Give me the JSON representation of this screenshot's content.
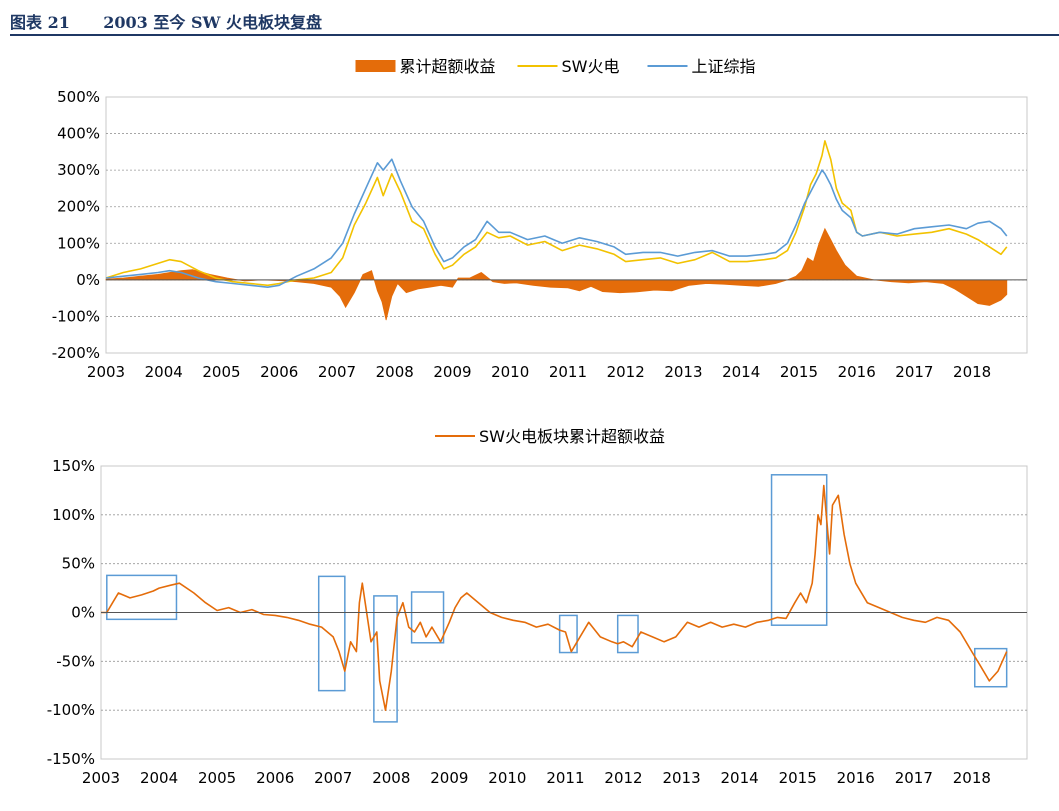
{
  "header": {
    "figure_label": "图表 21",
    "figure_title": "2003 至今 SW 火电板块复盘"
  },
  "colors": {
    "excess": "#e46c0a",
    "sw_power": "#f2c200",
    "shanghai": "#5b9bd5",
    "box": "#5b9bd5",
    "title_bar": "#1f3864"
  },
  "chart_data": [
    {
      "type": "line",
      "title": "",
      "legend_position": "top-center",
      "grid": true,
      "xlabel": "",
      "ylabel": "",
      "ylim": [
        -200,
        500
      ],
      "y_ticks": [
        "500%",
        "400%",
        "300%",
        "200%",
        "100%",
        "0%",
        "-100%",
        "-200%"
      ],
      "x_ticks": [
        "2003",
        "2004",
        "2005",
        "2006",
        "2007",
        "2008",
        "2009",
        "2010",
        "2011",
        "2012",
        "2013",
        "2014",
        "2015",
        "2016",
        "2017",
        "2018"
      ],
      "series": [
        {
          "name": "累计超额收益",
          "style": "area",
          "x": [
            2003.0,
            2003.3,
            2003.6,
            2003.9,
            2004.1,
            2004.3,
            2004.5,
            2004.8,
            2005.1,
            2005.4,
            2005.7,
            2006.0,
            2006.3,
            2006.6,
            2006.9,
            2007.05,
            2007.15,
            2007.3,
            2007.45,
            2007.6,
            2007.7,
            2007.78,
            2007.85,
            2007.95,
            2008.05,
            2008.2,
            2008.4,
            2008.6,
            2008.8,
            2009.0,
            2009.1,
            2009.3,
            2009.5,
            2009.7,
            2009.9,
            2010.1,
            2010.4,
            2010.7,
            2011.0,
            2011.2,
            2011.4,
            2011.6,
            2011.9,
            2012.2,
            2012.5,
            2012.8,
            2013.1,
            2013.4,
            2013.7,
            2014.0,
            2014.3,
            2014.6,
            2014.8,
            2014.95,
            2015.05,
            2015.15,
            2015.25,
            2015.35,
            2015.45,
            2015.55,
            2015.65,
            2015.8,
            2016.0,
            2016.3,
            2016.6,
            2016.9,
            2017.2,
            2017.5,
            2017.7,
            2017.9,
            2018.1,
            2018.3,
            2018.5,
            2018.6
          ],
          "values": [
            2,
            5,
            10,
            15,
            20,
            25,
            28,
            15,
            5,
            -3,
            0,
            -2,
            -5,
            -10,
            -20,
            -45,
            -75,
            -35,
            15,
            25,
            -30,
            -60,
            -110,
            -45,
            -10,
            -35,
            -25,
            -20,
            -15,
            -20,
            5,
            5,
            20,
            -5,
            -10,
            -8,
            -15,
            -20,
            -22,
            -30,
            -18,
            -32,
            -35,
            -33,
            -28,
            -30,
            -15,
            -10,
            -12,
            -15,
            -18,
            -10,
            0,
            10,
            25,
            60,
            50,
            100,
            140,
            110,
            80,
            40,
            10,
            0,
            -5,
            -8,
            -5,
            -10,
            -25,
            -45,
            -65,
            -70,
            -55,
            -40
          ]
        },
        {
          "name": "SW火电",
          "style": "line",
          "x": [
            2003.0,
            2003.3,
            2003.6,
            2003.9,
            2004.1,
            2004.3,
            2004.6,
            2004.9,
            2005.2,
            2005.5,
            2005.8,
            2006.0,
            2006.3,
            2006.6,
            2006.9,
            2007.1,
            2007.3,
            2007.5,
            2007.7,
            2007.8,
            2007.95,
            2008.1,
            2008.3,
            2008.5,
            2008.7,
            2008.85,
            2009.0,
            2009.2,
            2009.4,
            2009.6,
            2009.8,
            2010.0,
            2010.3,
            2010.6,
            2010.9,
            2011.2,
            2011.5,
            2011.8,
            2012.0,
            2012.3,
            2012.6,
            2012.9,
            2013.2,
            2013.5,
            2013.8,
            2014.1,
            2014.4,
            2014.6,
            2014.8,
            2014.95,
            2015.1,
            2015.2,
            2015.3,
            2015.4,
            2015.45,
            2015.55,
            2015.65,
            2015.75,
            2015.9,
            2016.0,
            2016.1,
            2016.4,
            2016.7,
            2017.0,
            2017.3,
            2017.6,
            2017.9,
            2018.1,
            2018.3,
            2018.5,
            2018.6
          ],
          "values": [
            5,
            20,
            30,
            45,
            55,
            50,
            25,
            5,
            -5,
            -10,
            -15,
            -10,
            0,
            5,
            20,
            60,
            150,
            210,
            280,
            230,
            290,
            240,
            160,
            140,
            70,
            30,
            40,
            70,
            90,
            130,
            115,
            120,
            95,
            105,
            80,
            95,
            85,
            70,
            50,
            55,
            60,
            45,
            55,
            75,
            50,
            50,
            55,
            60,
            80,
            130,
            200,
            260,
            290,
            340,
            380,
            330,
            250,
            210,
            190,
            130,
            120,
            130,
            120,
            125,
            130,
            140,
            125,
            110,
            90,
            70,
            90
          ]
        },
        {
          "name": "上证综指",
          "style": "line",
          "x": [
            2003.0,
            2003.3,
            2003.6,
            2003.9,
            2004.1,
            2004.3,
            2004.6,
            2004.9,
            2005.2,
            2005.5,
            2005.8,
            2006.0,
            2006.3,
            2006.6,
            2006.9,
            2007.1,
            2007.3,
            2007.5,
            2007.7,
            2007.8,
            2007.95,
            2008.1,
            2008.3,
            2008.5,
            2008.7,
            2008.85,
            2009.0,
            2009.2,
            2009.4,
            2009.6,
            2009.8,
            2010.0,
            2010.3,
            2010.6,
            2010.9,
            2011.2,
            2011.5,
            2011.8,
            2012.0,
            2012.3,
            2012.6,
            2012.9,
            2013.2,
            2013.5,
            2013.8,
            2014.1,
            2014.4,
            2014.6,
            2014.8,
            2014.95,
            2015.1,
            2015.2,
            2015.3,
            2015.4,
            2015.45,
            2015.55,
            2015.65,
            2015.75,
            2015.9,
            2016.0,
            2016.1,
            2016.4,
            2016.7,
            2017.0,
            2017.3,
            2017.6,
            2017.9,
            2018.1,
            2018.3,
            2018.5,
            2018.6
          ],
          "values": [
            5,
            10,
            15,
            20,
            25,
            20,
            5,
            -5,
            -10,
            -15,
            -20,
            -15,
            10,
            30,
            60,
            100,
            180,
            250,
            320,
            300,
            330,
            270,
            200,
            160,
            90,
            50,
            60,
            90,
            110,
            160,
            130,
            130,
            110,
            120,
            100,
            115,
            105,
            90,
            70,
            75,
            75,
            65,
            75,
            80,
            65,
            65,
            70,
            75,
            100,
            150,
            210,
            240,
            270,
            300,
            290,
            260,
            220,
            190,
            170,
            130,
            120,
            130,
            125,
            140,
            145,
            150,
            140,
            155,
            160,
            140,
            120
          ]
        }
      ]
    },
    {
      "type": "line",
      "title": "",
      "legend_position": "top-center",
      "grid": true,
      "xlabel": "",
      "ylabel": "",
      "ylim": [
        -150,
        150
      ],
      "y_ticks": [
        "150%",
        "100%",
        "50%",
        "0%",
        "-50%",
        "-100%",
        "-150%"
      ],
      "x_ticks": [
        "2003",
        "2004",
        "2005",
        "2006",
        "2007",
        "2008",
        "2009",
        "2010",
        "2011",
        "2012",
        "2013",
        "2014",
        "2015",
        "2016",
        "2017",
        "2018"
      ],
      "series": [
        {
          "name": "SW火电板块累计超额收益",
          "x": [
            2003.0,
            2003.1,
            2003.2,
            2003.3,
            2003.5,
            2003.7,
            2003.9,
            2004.0,
            2004.2,
            2004.35,
            2004.6,
            2004.8,
            2005.0,
            2005.2,
            2005.4,
            2005.6,
            2005.8,
            2006.0,
            2006.2,
            2006.4,
            2006.6,
            2006.8,
            2007.0,
            2007.1,
            2007.2,
            2007.3,
            2007.4,
            2007.45,
            2007.5,
            2007.6,
            2007.65,
            2007.75,
            2007.8,
            2007.9,
            2008.0,
            2008.1,
            2008.2,
            2008.3,
            2008.4,
            2008.5,
            2008.6,
            2008.7,
            2008.85,
            2009.0,
            2009.1,
            2009.2,
            2009.3,
            2009.5,
            2009.7,
            2009.9,
            2010.1,
            2010.3,
            2010.5,
            2010.7,
            2010.9,
            2011.0,
            2011.1,
            2011.2,
            2011.4,
            2011.6,
            2011.8,
            2011.9,
            2012.0,
            2012.15,
            2012.3,
            2012.5,
            2012.7,
            2012.9,
            2013.1,
            2013.3,
            2013.5,
            2013.7,
            2013.9,
            2014.1,
            2014.3,
            2014.5,
            2014.65,
            2014.8,
            2014.95,
            2015.05,
            2015.15,
            2015.25,
            2015.3,
            2015.35,
            2015.4,
            2015.45,
            2015.5,
            2015.55,
            2015.6,
            2015.7,
            2015.8,
            2015.9,
            2016.0,
            2016.2,
            2016.4,
            2016.6,
            2016.8,
            2017.0,
            2017.2,
            2017.4,
            2017.6,
            2017.8,
            2018.0,
            2018.15,
            2018.3,
            2018.45,
            2018.6
          ],
          "values": [
            0,
            0,
            10,
            20,
            15,
            18,
            22,
            25,
            28,
            30,
            20,
            10,
            2,
            5,
            0,
            3,
            -2,
            -3,
            -5,
            -8,
            -12,
            -15,
            -25,
            -40,
            -60,
            -30,
            -40,
            10,
            30,
            -10,
            -30,
            -20,
            -70,
            -100,
            -60,
            -5,
            10,
            -15,
            -20,
            -10,
            -25,
            -15,
            -30,
            -10,
            5,
            15,
            20,
            10,
            0,
            -5,
            -8,
            -10,
            -15,
            -12,
            -18,
            -20,
            -40,
            -30,
            -10,
            -25,
            -30,
            -32,
            -30,
            -35,
            -20,
            -25,
            -30,
            -25,
            -10,
            -15,
            -10,
            -15,
            -12,
            -15,
            -10,
            -8,
            -5,
            -6,
            10,
            20,
            10,
            30,
            60,
            100,
            90,
            130,
            95,
            60,
            110,
            120,
            80,
            50,
            30,
            10,
            5,
            0,
            -5,
            -8,
            -10,
            -5,
            -8,
            -20,
            -40,
            -55,
            -70,
            -60,
            -40
          ]
        }
      ],
      "highlight_ranges": [
        {
          "x": [
            2003.1,
            2004.3
          ],
          "y": [
            -7,
            38
          ]
        },
        {
          "x": [
            2006.75,
            2007.2
          ],
          "y": [
            -80,
            37
          ]
        },
        {
          "x": [
            2007.7,
            2008.1
          ],
          "y": [
            -112,
            17
          ]
        },
        {
          "x": [
            2008.35,
            2008.9
          ],
          "y": [
            -31,
            21
          ]
        },
        {
          "x": [
            2010.9,
            2011.2
          ],
          "y": [
            -41,
            -3
          ]
        },
        {
          "x": [
            2011.9,
            2012.25
          ],
          "y": [
            -41,
            -3
          ]
        },
        {
          "x": [
            2014.55,
            2015.5
          ],
          "y": [
            -13,
            141
          ]
        },
        {
          "x": [
            2018.05,
            2018.6
          ],
          "y": [
            -76,
            -37
          ]
        }
      ]
    }
  ]
}
